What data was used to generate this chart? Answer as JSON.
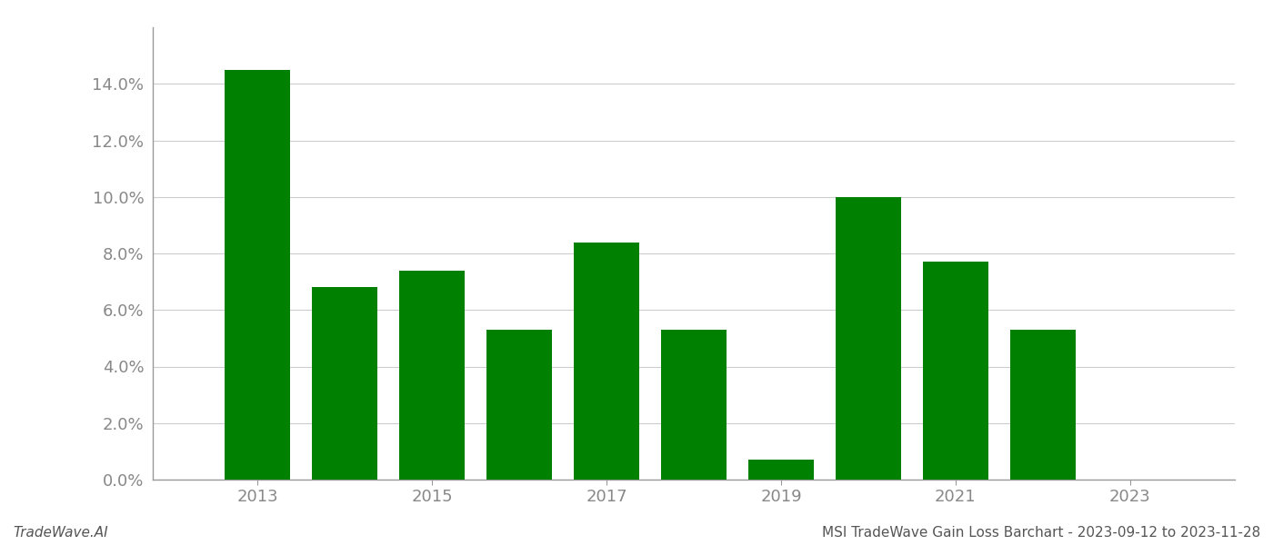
{
  "years": [
    2013,
    2014,
    2015,
    2016,
    2017,
    2018,
    2019,
    2020,
    2021,
    2022
  ],
  "values": [
    0.145,
    0.068,
    0.074,
    0.053,
    0.084,
    0.053,
    0.007,
    0.1,
    0.077,
    0.053
  ],
  "bar_color": "#008000",
  "background_color": "#ffffff",
  "footer_left": "TradeWave.AI",
  "footer_right": "MSI TradeWave Gain Loss Barchart - 2023-09-12 to 2023-11-28",
  "ylim": [
    0,
    0.16
  ],
  "yticks": [
    0.0,
    0.02,
    0.04,
    0.06,
    0.08,
    0.1,
    0.12,
    0.14
  ],
  "xticks": [
    2013,
    2015,
    2017,
    2019,
    2021,
    2023
  ],
  "xlim": [
    2011.8,
    2024.2
  ],
  "grid_color": "#cccccc",
  "bar_width": 0.75,
  "tick_fontsize": 13,
  "footer_fontsize": 11,
  "spine_color": "#999999"
}
